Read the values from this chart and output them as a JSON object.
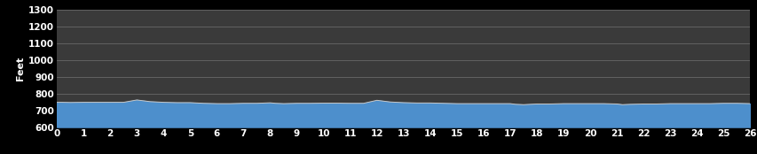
{
  "background_color": "#000000",
  "plot_bg_color": "#3a3a3a",
  "fill_color": "#4d8fcc",
  "line_color": "#c8c8c8",
  "text_color": "#ffffff",
  "grid_color": "#686868",
  "ylabel": "Feet",
  "ylim": [
    600,
    1300
  ],
  "xlim": [
    0,
    26
  ],
  "yticks": [
    600,
    700,
    800,
    900,
    1000,
    1100,
    1200,
    1300
  ],
  "xticks": [
    0,
    1,
    2,
    3,
    4,
    5,
    6,
    7,
    8,
    9,
    10,
    11,
    12,
    13,
    14,
    15,
    16,
    17,
    18,
    19,
    20,
    21,
    22,
    23,
    24,
    25,
    26
  ],
  "elevation_x": [
    0,
    0.2,
    0.5,
    1,
    1.5,
    2,
    2.5,
    3,
    3.2,
    3.5,
    4,
    4.5,
    5,
    5.5,
    6,
    6.5,
    7,
    7.5,
    8,
    8.2,
    8.5,
    9,
    9.5,
    10,
    10.5,
    11,
    11.5,
    12,
    12.2,
    12.5,
    13,
    13.5,
    14,
    14.5,
    15,
    15.5,
    16,
    16.5,
    17,
    17.2,
    17.5,
    18,
    18.5,
    19,
    19.5,
    20,
    20.5,
    21,
    21.2,
    21.5,
    22,
    22.5,
    23,
    23.5,
    24,
    24.5,
    25,
    25.5,
    26
  ],
  "elevation_y": [
    748,
    748,
    747,
    748,
    748,
    748,
    748,
    762,
    758,
    752,
    748,
    746,
    746,
    742,
    740,
    740,
    742,
    742,
    745,
    742,
    740,
    742,
    742,
    743,
    743,
    742,
    742,
    760,
    756,
    750,
    746,
    744,
    744,
    742,
    740,
    740,
    740,
    740,
    740,
    736,
    734,
    738,
    738,
    740,
    740,
    740,
    740,
    738,
    734,
    736,
    738,
    738,
    740,
    740,
    740,
    740,
    742,
    742,
    740
  ],
  "figsize": [
    8.54,
    1.74
  ],
  "dpi": 100,
  "tick_fontsize": 7.5,
  "ylabel_fontsize": 8
}
